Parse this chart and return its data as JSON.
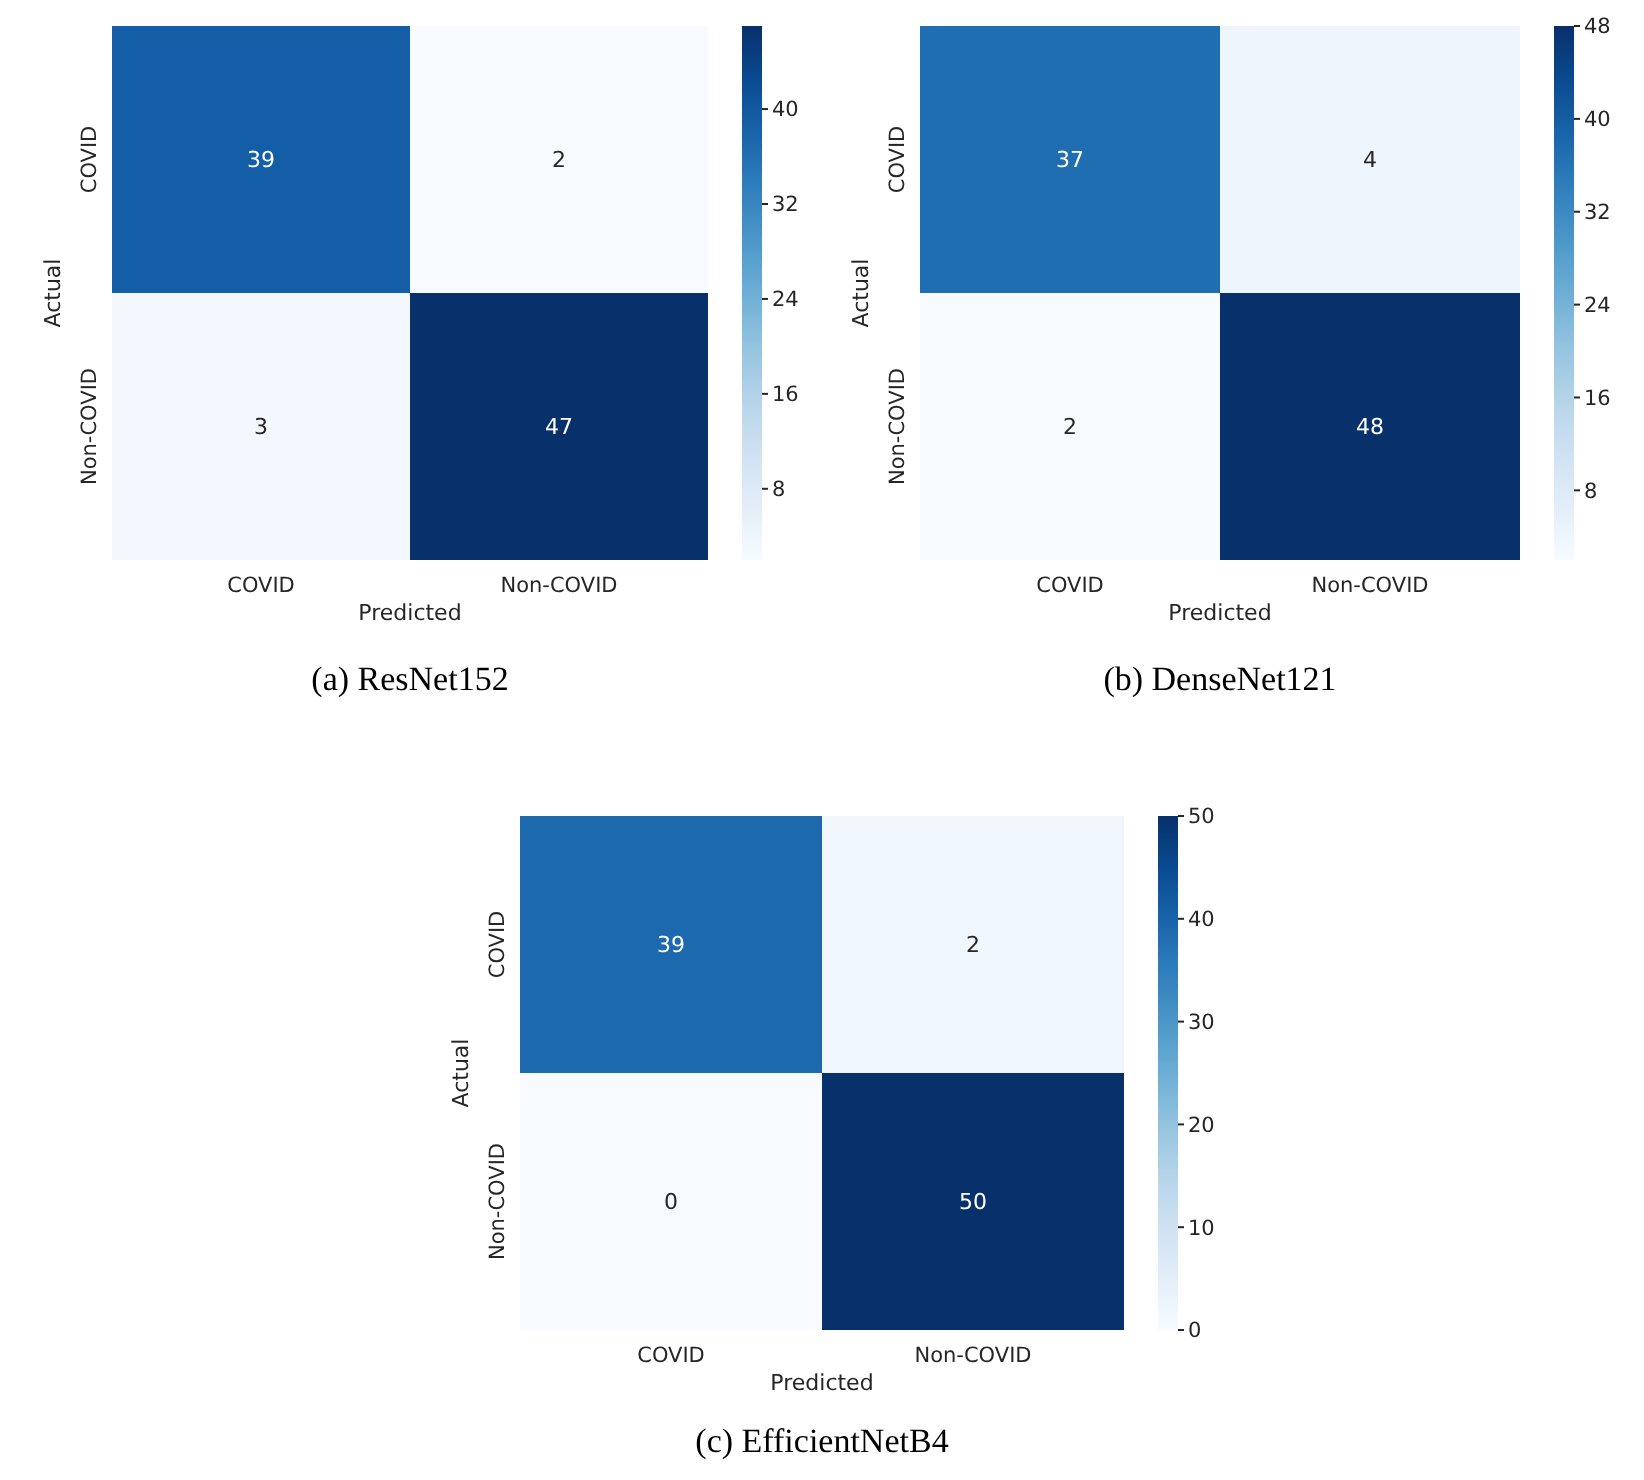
{
  "chart_data": [
    {
      "type": "heatmap",
      "title": "(a) ResNet152",
      "xlabel": "Predicted",
      "ylabel": "Actual",
      "categories": [
        "COVID",
        "Non-COVID"
      ],
      "y_categories": [
        "COVID",
        "Non-COVID"
      ],
      "cells": [
        [
          39,
          2
        ],
        [
          3,
          47
        ]
      ],
      "clim": [
        2,
        47
      ],
      "cticks": [
        8,
        16,
        24,
        32,
        40
      ],
      "data_labels": true
    },
    {
      "type": "heatmap",
      "title": "(b) DenseNet121",
      "xlabel": "Predicted",
      "ylabel": "Actual",
      "categories": [
        "COVID",
        "Non-COVID"
      ],
      "y_categories": [
        "COVID",
        "Non-COVID"
      ],
      "cells": [
        [
          37,
          4
        ],
        [
          2,
          48
        ]
      ],
      "clim": [
        2,
        48
      ],
      "cticks": [
        8,
        16,
        24,
        32,
        40,
        48
      ],
      "data_labels": true
    },
    {
      "type": "heatmap",
      "title": "(c) EfficientNetB4",
      "xlabel": "Predicted",
      "ylabel": "Actual",
      "categories": [
        "COVID",
        "Non-COVID"
      ],
      "y_categories": [
        "COVID",
        "Non-COVID"
      ],
      "cells": [
        [
          39,
          2
        ],
        [
          0,
          50
        ]
      ],
      "clim": [
        0,
        50
      ],
      "cticks": [
        0,
        10,
        20,
        30,
        40,
        50
      ],
      "data_labels": true
    }
  ]
}
